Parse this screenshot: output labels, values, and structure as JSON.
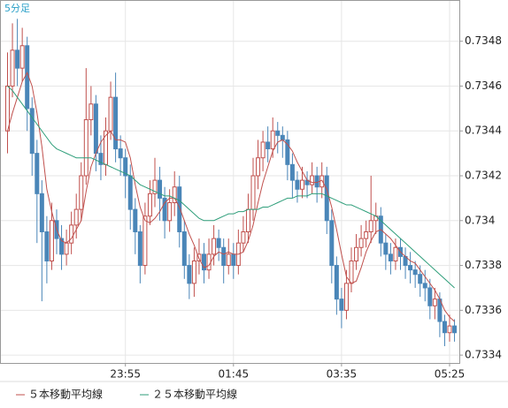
{
  "chart_data": {
    "type": "candlestick",
    "title": "5分足",
    "categories": [
      null,
      null,
      null,
      null,
      null,
      null,
      null,
      null,
      null,
      null,
      null,
      null,
      null,
      null,
      null,
      null,
      null,
      null,
      null,
      null,
      null,
      null,
      null,
      null,
      "23:55",
      null,
      null,
      null,
      null,
      null,
      null,
      null,
      null,
      null,
      null,
      null,
      null,
      null,
      null,
      null,
      null,
      null,
      null,
      null,
      null,
      null,
      "01:45",
      null,
      null,
      null,
      null,
      null,
      null,
      null,
      null,
      null,
      null,
      null,
      null,
      null,
      null,
      null,
      null,
      null,
      null,
      null,
      null,
      null,
      "03:35",
      null,
      null,
      null,
      null,
      null,
      null,
      null,
      null,
      null,
      null,
      null,
      null,
      null,
      null,
      null,
      null,
      null,
      null,
      null,
      null,
      null,
      "05:25",
      null
    ],
    "open": [
      0.7344,
      0.7346,
      0.73476,
      0.73468,
      0.73478,
      0.7345,
      0.7343,
      0.73412,
      0.73395,
      0.73382,
      0.734,
      0.73392,
      0.73385,
      0.7339,
      0.73398,
      0.73405,
      0.7342,
      0.73445,
      0.73452,
      0.7343,
      0.73425,
      0.7344,
      0.73455,
      0.73432,
      0.73428,
      0.7342,
      0.73405,
      0.73395,
      0.7338,
      0.73402,
      0.73412,
      0.73418,
      0.7341,
      0.734,
      0.73408,
      0.73415,
      0.73395,
      0.7338,
      0.73372,
      0.73382,
      0.73385,
      0.73378,
      0.73385,
      0.73392,
      0.73388,
      0.7338,
      0.73385,
      0.7338,
      0.7339,
      0.73395,
      0.73405,
      0.7342,
      0.73428,
      0.73435,
      0.73432,
      0.7344,
      0.73438,
      0.73436,
      0.73425,
      0.73418,
      0.73414,
      0.73418,
      0.73416,
      0.7342,
      0.73415,
      0.7342,
      0.734,
      0.7338,
      0.73365,
      0.7336,
      0.73372,
      0.73382,
      0.73388,
      0.73392,
      0.73395,
      0.734,
      0.73402,
      0.7339,
      0.73385,
      0.73382,
      0.73388,
      0.73384,
      0.7338,
      0.73378,
      0.73376,
      0.73372,
      0.7337,
      0.73362,
      0.73365,
      0.73355,
      0.7335,
      0.73353
    ],
    "high": [
      0.73475,
      0.73488,
      0.7349,
      0.73486,
      0.73482,
      0.73455,
      0.73436,
      0.73418,
      0.73402,
      0.73408,
      0.73405,
      0.73398,
      0.73396,
      0.73404,
      0.73412,
      0.73426,
      0.73468,
      0.7346,
      0.73456,
      0.73438,
      0.73446,
      0.73462,
      0.73466,
      0.73438,
      0.73432,
      0.73425,
      0.7341,
      0.73398,
      0.73408,
      0.73418,
      0.73428,
      0.73424,
      0.73415,
      0.73414,
      0.73422,
      0.7342,
      0.734,
      0.73385,
      0.73388,
      0.73392,
      0.7339,
      0.73392,
      0.73398,
      0.73396,
      0.73392,
      0.73392,
      0.7339,
      0.73396,
      0.73402,
      0.73412,
      0.73428,
      0.73436,
      0.7344,
      0.73442,
      0.73446,
      0.73444,
      0.73442,
      0.7344,
      0.7343,
      0.73422,
      0.73424,
      0.73422,
      0.73426,
      0.73424,
      0.73426,
      0.73424,
      0.73405,
      0.73384,
      0.7337,
      0.73378,
      0.73388,
      0.73394,
      0.73398,
      0.734,
      0.7342,
      0.73408,
      0.73406,
      0.73394,
      0.7339,
      0.73392,
      0.73392,
      0.73388,
      0.73386,
      0.73382,
      0.7338,
      0.73378,
      0.73374,
      0.7337,
      0.73368,
      0.73358,
      0.73358,
      0.73356
    ],
    "low": [
      0.7343,
      0.73455,
      0.7346,
      0.73462,
      0.7344,
      0.7342,
      0.7339,
      0.73364,
      0.73372,
      0.73378,
      0.73385,
      0.73378,
      0.7338,
      0.73385,
      0.73392,
      0.734,
      0.73416,
      0.73438,
      0.73422,
      0.73418,
      0.7342,
      0.73436,
      0.73426,
      0.7342,
      0.7341,
      0.73396,
      0.73385,
      0.73372,
      0.73376,
      0.73398,
      0.73406,
      0.734,
      0.73392,
      0.73395,
      0.73402,
      0.73388,
      0.73374,
      0.73365,
      0.73366,
      0.73376,
      0.73372,
      0.73374,
      0.7338,
      0.73382,
      0.73372,
      0.73376,
      0.73374,
      0.73376,
      0.73386,
      0.7339,
      0.734,
      0.73414,
      0.73422,
      0.73426,
      0.73428,
      0.7343,
      0.73428,
      0.73418,
      0.7341,
      0.73408,
      0.7341,
      0.7341,
      0.73412,
      0.73408,
      0.7341,
      0.73394,
      0.73372,
      0.73358,
      0.73352,
      0.73356,
      0.73368,
      0.73378,
      0.73384,
      0.73388,
      0.7339,
      0.73394,
      0.73384,
      0.73378,
      0.73376,
      0.73378,
      0.73378,
      0.73374,
      0.73372,
      0.7337,
      0.73366,
      0.73364,
      0.73356,
      0.73356,
      0.73348,
      0.73344,
      0.73346,
      0.73346
    ],
    "close": [
      0.7346,
      0.73476,
      0.73468,
      0.73478,
      0.7345,
      0.7343,
      0.73412,
      0.73395,
      0.73382,
      0.734,
      0.73392,
      0.73385,
      0.7339,
      0.73398,
      0.73405,
      0.7342,
      0.73445,
      0.73452,
      0.7343,
      0.73425,
      0.7344,
      0.73455,
      0.73432,
      0.73428,
      0.7342,
      0.73405,
      0.73395,
      0.7338,
      0.73402,
      0.73412,
      0.73418,
      0.7341,
      0.734,
      0.73408,
      0.73415,
      0.73395,
      0.7338,
      0.73372,
      0.73382,
      0.73385,
      0.73378,
      0.73385,
      0.73392,
      0.73388,
      0.7338,
      0.73385,
      0.7338,
      0.7339,
      0.73395,
      0.73405,
      0.7342,
      0.73428,
      0.73435,
      0.73432,
      0.7344,
      0.73438,
      0.73436,
      0.73425,
      0.73418,
      0.73414,
      0.73418,
      0.73416,
      0.7342,
      0.73415,
      0.7342,
      0.734,
      0.7338,
      0.73365,
      0.7336,
      0.73372,
      0.73382,
      0.73388,
      0.73392,
      0.73395,
      0.734,
      0.73402,
      0.7339,
      0.73385,
      0.73382,
      0.73388,
      0.73384,
      0.7338,
      0.73378,
      0.73376,
      0.73372,
      0.7337,
      0.73362,
      0.73365,
      0.73355,
      0.7335,
      0.73353,
      0.7335
    ],
    "up_color": "#c0504d",
    "down_color": "#4a86b8",
    "series": [
      {
        "name": "５本移動平均線",
        "color": "#c0504d",
        "values": [
          0.7344,
          0.73448,
          0.73455,
          0.73462,
          0.73466,
          0.7346,
          0.73448,
          0.73433,
          0.73414,
          0.73404,
          0.73396,
          0.73391,
          0.7339,
          0.73392,
          0.73396,
          0.734,
          0.73413,
          0.73424,
          0.7343,
          0.73435,
          0.73438,
          0.7344,
          0.73436,
          0.73436,
          0.73435,
          0.73428,
          0.73416,
          0.73406,
          0.734,
          0.73399,
          0.73401,
          0.73404,
          0.73408,
          0.7341,
          0.7341,
          0.73406,
          0.734,
          0.73394,
          0.73389,
          0.73383,
          0.73379,
          0.7338,
          0.73384,
          0.73386,
          0.73385,
          0.73386,
          0.73385,
          0.73385,
          0.73386,
          0.73391,
          0.73398,
          0.73408,
          0.73417,
          0.73424,
          0.73431,
          0.73435,
          0.73436,
          0.73434,
          0.73431,
          0.73426,
          0.73422,
          0.73418,
          0.73417,
          0.73417,
          0.73418,
          0.73414,
          0.73406,
          0.73396,
          0.73385,
          0.73375,
          0.73372,
          0.73373,
          0.73379,
          0.73386,
          0.73391,
          0.73395,
          0.73396,
          0.73394,
          0.73392,
          0.73389,
          0.73386,
          0.73384,
          0.73382,
          0.73381,
          0.73378,
          0.73375,
          0.73372,
          0.73369,
          0.73365,
          0.7336,
          0.73357,
          0.73355
        ]
      },
      {
        "name": "２５本移動平均線",
        "color": "#2e9e7a",
        "values": [
          0.7346,
          0.73458,
          0.73455,
          0.73452,
          0.73449,
          0.73446,
          0.73443,
          0.7344,
          0.73437,
          0.73434,
          0.73432,
          0.73431,
          0.7343,
          0.73429,
          0.73428,
          0.73428,
          0.73428,
          0.73428,
          0.73427,
          0.73426,
          0.73425,
          0.73424,
          0.73423,
          0.73422,
          0.73421,
          0.7342,
          0.73418,
          0.73416,
          0.73415,
          0.73414,
          0.73413,
          0.73412,
          0.73411,
          0.73411,
          0.7341,
          0.73409,
          0.73407,
          0.73405,
          0.73403,
          0.73401,
          0.734,
          0.734,
          0.734,
          0.73401,
          0.73402,
          0.73403,
          0.73403,
          0.73404,
          0.73404,
          0.73405,
          0.73405,
          0.73405,
          0.73406,
          0.73406,
          0.73407,
          0.73408,
          0.73409,
          0.7341,
          0.7341,
          0.73411,
          0.73411,
          0.73411,
          0.73412,
          0.73412,
          0.73412,
          0.73411,
          0.7341,
          0.73409,
          0.73408,
          0.73407,
          0.73407,
          0.73406,
          0.73405,
          0.73404,
          0.73403,
          0.73402,
          0.734,
          0.73398,
          0.73396,
          0.73394,
          0.73392,
          0.7339,
          0.73388,
          0.73386,
          0.73384,
          0.73382,
          0.7338,
          0.73378,
          0.73376,
          0.73374,
          0.73372,
          0.7337
        ]
      }
    ],
    "ylim": [
      0.733365,
      0.73498
    ],
    "yticks": [
      0.7334,
      0.7336,
      0.7338,
      0.734,
      0.7342,
      0.7344,
      0.7346,
      0.7348
    ],
    "grid": true
  }
}
